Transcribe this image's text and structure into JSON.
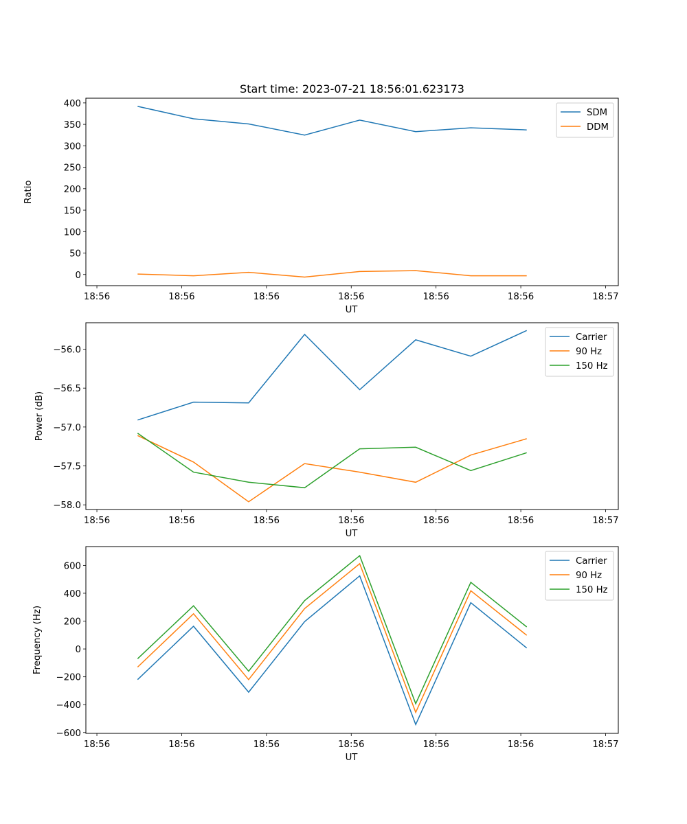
{
  "chart_data": [
    {
      "type": "line",
      "title": "Start time: 2023-07-21 18:56:01.623173",
      "xlabel": "UT",
      "ylabel": "Ratio",
      "x": [
        0.48,
        1.14,
        1.79,
        2.45,
        3.1,
        3.76,
        4.41,
        5.07
      ],
      "xlim": [
        -0.13,
        6.15
      ],
      "xticks": [
        0,
        1,
        2,
        3,
        4,
        5,
        6
      ],
      "xtick_labels": [
        "18:56",
        "18:56",
        "18:56",
        "18:56",
        "18:56",
        "18:56",
        "18:57"
      ],
      "ylim": [
        -26,
        411
      ],
      "yticks": [
        0,
        50,
        100,
        150,
        200,
        250,
        300,
        350,
        400
      ],
      "ytick_labels": [
        "0",
        "50",
        "100",
        "150",
        "200",
        "250",
        "300",
        "350",
        "400"
      ],
      "grid": false,
      "legend": "top-right",
      "series": [
        {
          "name": "SDM",
          "color": "#1f77b4",
          "values": [
            392,
            363,
            351,
            325,
            360,
            333,
            342,
            337
          ]
        },
        {
          "name": "DDM",
          "color": "#ff7f0e",
          "values": [
            1,
            -3,
            5,
            -6,
            7,
            9,
            -3,
            -3
          ]
        }
      ]
    },
    {
      "type": "line",
      "title": "",
      "xlabel": "UT",
      "ylabel": "Power (dB)",
      "x": [
        0.48,
        1.14,
        1.79,
        2.45,
        3.1,
        3.76,
        4.41,
        5.07
      ],
      "xlim": [
        -0.13,
        6.15
      ],
      "xticks": [
        0,
        1,
        2,
        3,
        4,
        5,
        6
      ],
      "xtick_labels": [
        "18:56",
        "18:56",
        "18:56",
        "18:56",
        "18:56",
        "18:56",
        "18:57"
      ],
      "ylim": [
        -58.06,
        -55.66
      ],
      "yticks": [
        -58.0,
        -57.5,
        -57.0,
        -56.5,
        -56.0
      ],
      "ytick_labels": [
        "−58.0",
        "−57.5",
        "−57.0",
        "−56.5",
        "−56.0"
      ],
      "grid": false,
      "legend": "top-right",
      "series": [
        {
          "name": "Carrier",
          "color": "#1f77b4",
          "values": [
            -56.91,
            -56.68,
            -56.69,
            -55.81,
            -56.52,
            -55.88,
            -56.09,
            -55.76
          ]
        },
        {
          "name": "90 Hz",
          "color": "#ff7f0e",
          "values": [
            -57.11,
            -57.45,
            -57.96,
            -57.47,
            -57.58,
            -57.71,
            -57.36,
            -57.15
          ]
        },
        {
          "name": "150 Hz",
          "color": "#2ca02c",
          "values": [
            -57.08,
            -57.58,
            -57.71,
            -57.78,
            -57.28,
            -57.26,
            -57.56,
            -57.33
          ]
        }
      ]
    },
    {
      "type": "line",
      "title": "",
      "xlabel": "UT",
      "ylabel": "Frequency (Hz)",
      "x": [
        0.48,
        1.14,
        1.79,
        2.45,
        3.1,
        3.76,
        4.41,
        5.07
      ],
      "xlim": [
        -0.13,
        6.15
      ],
      "xticks": [
        0,
        1,
        2,
        3,
        4,
        5,
        6
      ],
      "xtick_labels": [
        "18:56",
        "18:56",
        "18:56",
        "18:56",
        "18:56",
        "18:56",
        "18:57"
      ],
      "ylim": [
        -606,
        735
      ],
      "yticks": [
        -600,
        -400,
        -200,
        0,
        200,
        400,
        600
      ],
      "ytick_labels": [
        "−600",
        "−400",
        "−200",
        "0",
        "200",
        "400",
        "600"
      ],
      "grid": false,
      "legend": "top-right",
      "series": [
        {
          "name": "Carrier",
          "color": "#1f77b4",
          "values": [
            -220,
            163,
            -310,
            196,
            525,
            -543,
            332,
            7
          ]
        },
        {
          "name": "90 Hz",
          "color": "#ff7f0e",
          "values": [
            -130,
            253,
            -220,
            290,
            612,
            -455,
            418,
            98
          ]
        },
        {
          "name": "150 Hz",
          "color": "#2ca02c",
          "values": [
            -70,
            310,
            -160,
            347,
            670,
            -393,
            478,
            158
          ]
        }
      ]
    }
  ]
}
